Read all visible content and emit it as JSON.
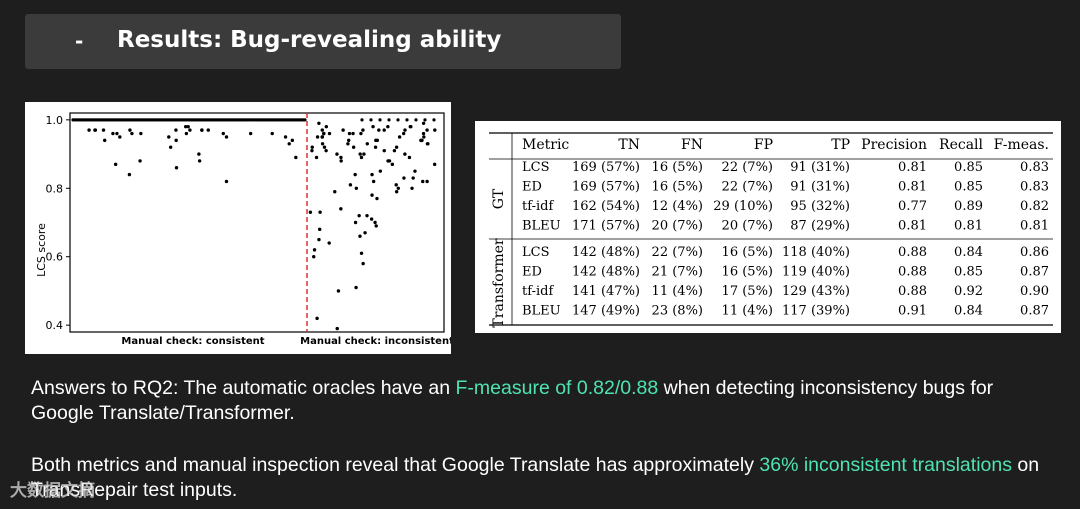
{
  "slide": {
    "dash": "-",
    "title": "Results: Bug-revealing ability"
  },
  "chart_data": {
    "type": "scatter",
    "ylabel": "LCS score",
    "xlabel": "",
    "ylim": [
      0.38,
      1.02
    ],
    "yticks": [
      "1.0",
      "0.8",
      "0.6",
      "0.4"
    ],
    "ytick_values": [
      1.0,
      0.8,
      0.6,
      0.4
    ],
    "group_labels": [
      "Manual check: consistent",
      "Manual check: inconsistent"
    ],
    "divider_color": "#d62728",
    "series": [
      {
        "values": [
          0.96,
          0.97,
          0.97,
          0.96,
          0.97,
          0.97,
          0.97,
          0.96,
          0.97,
          0.95,
          0.96,
          0.96,
          0.96,
          0.97,
          0.98,
          0.97,
          0.95,
          0.96,
          0.97,
          0.98,
          0.96,
          0.97,
          0.95,
          0.94,
          0.94,
          0.94,
          0.93,
          0.95,
          0.92,
          0.88,
          0.82,
          0.88,
          0.87,
          0.89,
          0.86,
          0.84,
          0.9
        ]
      },
      {
        "values": [
          0.96,
          0.97,
          0.95,
          0.97,
          0.98,
          0.96,
          0.97,
          0.95,
          0.97,
          0.96,
          0.98,
          0.94,
          0.96,
          0.97,
          0.95,
          0.99,
          0.96,
          0.94,
          0.98,
          0.97,
          0.95,
          0.96,
          0.97,
          0.98,
          0.96,
          0.95,
          0.97,
          0.99,
          0.96,
          0.98,
          0.93,
          0.9,
          0.92,
          0.88,
          0.91,
          0.94,
          0.89,
          0.93,
          0.9,
          0.92,
          0.87,
          0.91,
          0.94,
          0.89,
          0.92,
          0.9,
          0.93,
          0.88,
          0.91,
          0.92,
          0.89,
          0.93,
          0.9,
          0.87,
          0.92,
          0.94,
          0.88,
          0.91,
          0.89,
          0.93,
          0.85,
          0.82,
          0.79,
          0.83,
          0.8,
          0.84,
          0.81,
          0.77,
          0.82,
          0.78,
          0.85,
          0.8,
          0.83,
          0.81,
          0.79,
          0.84,
          0.82,
          0.8,
          0.73,
          0.72,
          0.7,
          0.68,
          0.66,
          0.73,
          0.71,
          0.69,
          0.74,
          0.67,
          0.72,
          0.7,
          0.64,
          0.61,
          0.6,
          0.58,
          0.65,
          0.62,
          0.51,
          0.5,
          0.42,
          0.39
        ]
      }
    ]
  },
  "table": {
    "headers": [
      "Metric",
      "TN",
      "FN",
      "FP",
      "TP",
      "Precision",
      "Recall",
      "F-meas."
    ],
    "groups": [
      {
        "name": "GT",
        "rows": [
          [
            "LCS",
            "169 (57%)",
            "16 (5%)",
            "22 (7%)",
            "91 (31%)",
            "0.81",
            "0.85",
            "0.83"
          ],
          [
            "ED",
            "169 (57%)",
            "16 (5%)",
            "22 (7%)",
            "91 (31%)",
            "0.81",
            "0.85",
            "0.83"
          ],
          [
            "tf-idf",
            "162 (54%)",
            "12 (4%)",
            "29 (10%)",
            "95 (32%)",
            "0.77",
            "0.89",
            "0.82"
          ],
          [
            "BLEU",
            "171 (57%)",
            "20 (7%)",
            "20 (7%)",
            "87 (29%)",
            "0.81",
            "0.81",
            "0.81"
          ]
        ]
      },
      {
        "name": "Transformer",
        "rows": [
          [
            "LCS",
            "142 (48%)",
            "22 (7%)",
            "16 (5%)",
            "118 (40%)",
            "0.88",
            "0.84",
            "0.86"
          ],
          [
            "ED",
            "142 (48%)",
            "21 (7%)",
            "16 (5%)",
            "119 (40%)",
            "0.88",
            "0.85",
            "0.87"
          ],
          [
            "tf-idf",
            "141 (47%)",
            "11 (4%)",
            "17 (5%)",
            "129 (43%)",
            "0.88",
            "0.92",
            "0.90"
          ],
          [
            "BLEU",
            "147 (49%)",
            "23 (8%)",
            "11 (4%)",
            "117 (39%)",
            "0.91",
            "0.84",
            "0.87"
          ]
        ]
      }
    ]
  },
  "answer1": {
    "pre": "Answers to RQ2: The automatic oracles have an ",
    "hl": "F-measure of 0.82/0.88",
    "post": " when detecting inconsistency bugs for Google Translate/Transformer."
  },
  "answer2": {
    "pre": "Both metrics and manual inspection reveal that Google Translate has approximately ",
    "hl": "36% inconsistent translations",
    "post": " on TransRepair test inputs."
  },
  "watermark": "大数据文摘",
  "highlight_color": "#4fe3b3"
}
